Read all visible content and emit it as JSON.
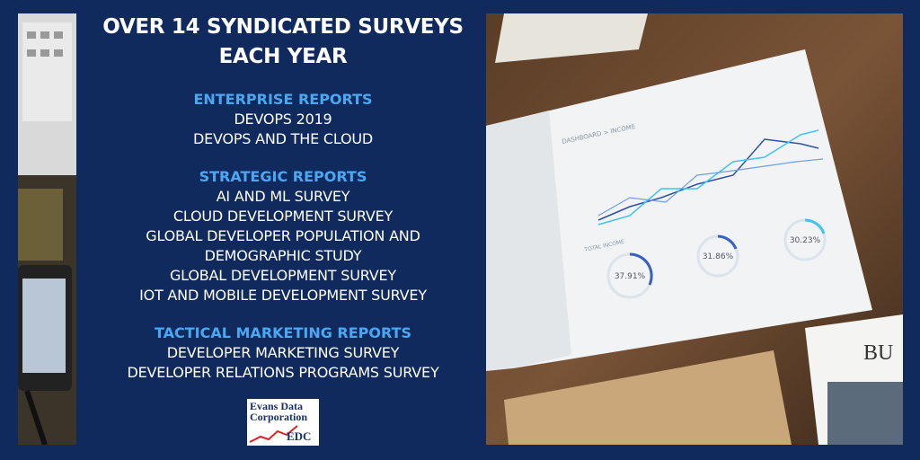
{
  "title": [
    "OVER 14 SYNDICATED SURVEYS",
    "EACH YEAR"
  ],
  "sections": [
    {
      "heading": "ENTERPRISE REPORTS",
      "items": [
        "DEVOPS 2019",
        "DEVOPS AND THE CLOUD"
      ]
    },
    {
      "heading": "STRATEGIC REPORTS",
      "items": [
        "AI AND ML SURVEY",
        "CLOUD DEVELOPMENT SURVEY",
        "GLOBAL DEVELOPER POPULATION AND",
        "DEMOGRAPHIC STUDY",
        "GLOBAL DEVELOPMENT SURVEY",
        "IOT AND MOBILE DEVELOPMENT SURVEY"
      ]
    },
    {
      "heading": "TACTICAL MARKETING REPORTS",
      "items": [
        "DEVELOPER MARKETING SURVEY",
        "DEVELOPER RELATIONS PROGRAMS SURVEY"
      ]
    }
  ],
  "logo": {
    "line1": "Evans Data",
    "line2": "Corporation",
    "abbr": "EDC"
  },
  "photo": {
    "header": "DASHBOARD > INCOME",
    "subheader": "TOTAL INCOME",
    "gauges": [
      "37.91%",
      "31.86%",
      "30.23%"
    ],
    "newspaper": "BU"
  }
}
